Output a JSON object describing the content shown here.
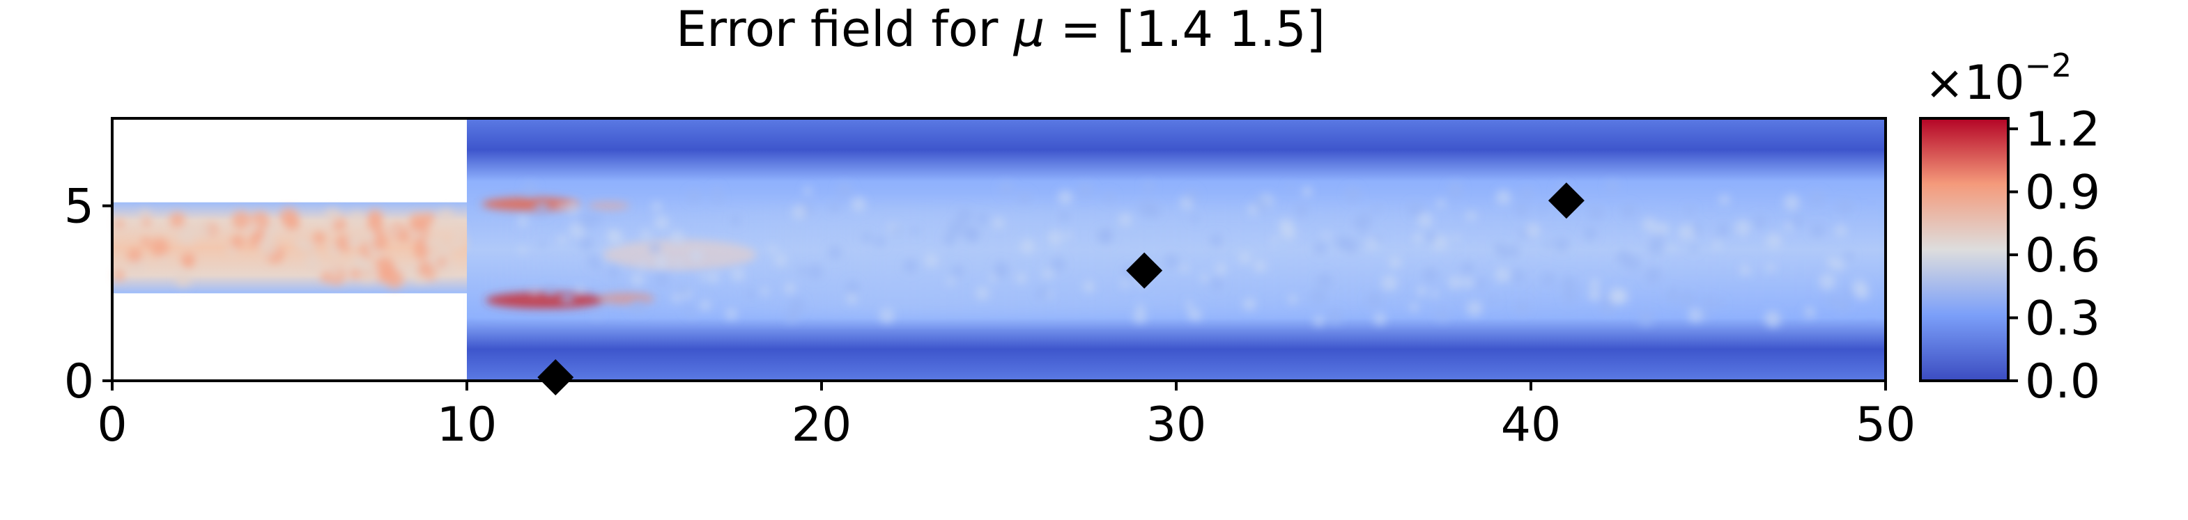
{
  "chart_data": {
    "type": "heatmap",
    "title": "Error field for μ = [1.4 1.5]",
    "title_prefix": "Error field for ",
    "title_mu": "μ",
    "title_suffix": " = [1.4 1.5]",
    "xlim": [
      0,
      50
    ],
    "ylim": [
      0,
      7.5
    ],
    "xticks": [
      0,
      10,
      20,
      30,
      40,
      50
    ],
    "xtick_labels": [
      "0",
      "10",
      "20",
      "30",
      "40",
      "50"
    ],
    "yticks": [
      0,
      5
    ],
    "ytick_labels": [
      "0",
      "5"
    ],
    "domain": {
      "inlet_channel": {
        "x": [
          0,
          10
        ],
        "y": [
          2.5,
          5.1
        ]
      },
      "main_channel": {
        "x": [
          10,
          50
        ],
        "y": [
          0,
          7.5
        ]
      }
    },
    "colormap": "coolwarm",
    "colorbar": {
      "multiplier_base": "×10",
      "multiplier_exp": "−2",
      "range": [
        0.0,
        1.25
      ],
      "ticks": [
        0.0,
        0.3,
        0.6,
        0.9,
        1.2
      ],
      "tick_labels": [
        "0.0",
        "0.3",
        "0.6",
        "0.9",
        "1.2"
      ]
    },
    "markers": [
      {
        "x": 12.5,
        "y": 0.1
      },
      {
        "x": 29.1,
        "y": 3.15
      },
      {
        "x": 41.0,
        "y": 5.15
      }
    ],
    "marker_color": "#000000"
  }
}
